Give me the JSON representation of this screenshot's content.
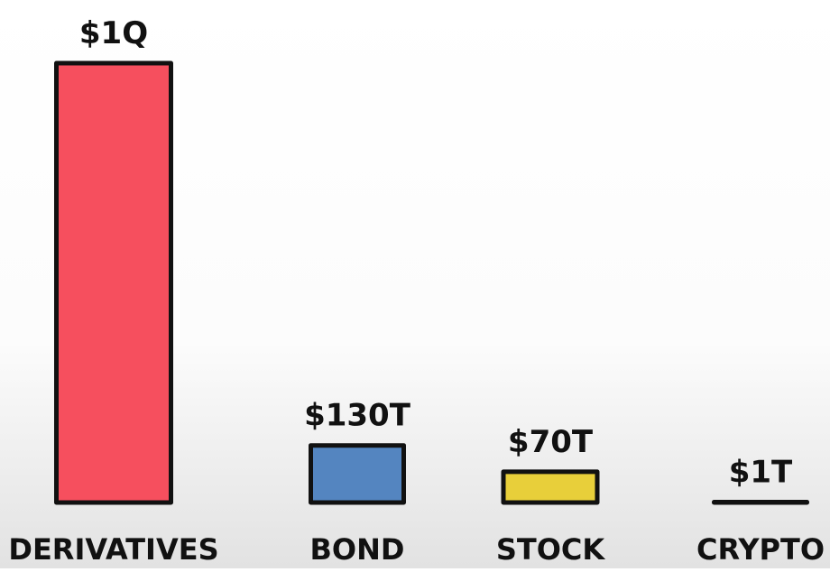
{
  "chart_data": {
    "type": "bar",
    "categories": [
      "DERIVATIVES",
      "BOND",
      "STOCK",
      "CRYPTO"
    ],
    "values": [
      1000000000000000,
      130000000000000,
      70000000000000,
      1000000000000
    ],
    "value_labels": [
      "$1Q",
      "$130T",
      "$70T",
      "$1T"
    ],
    "colors": [
      "#f64f5e",
      "#5485c0",
      "#e8cf3a",
      "#e0a04e"
    ]
  }
}
